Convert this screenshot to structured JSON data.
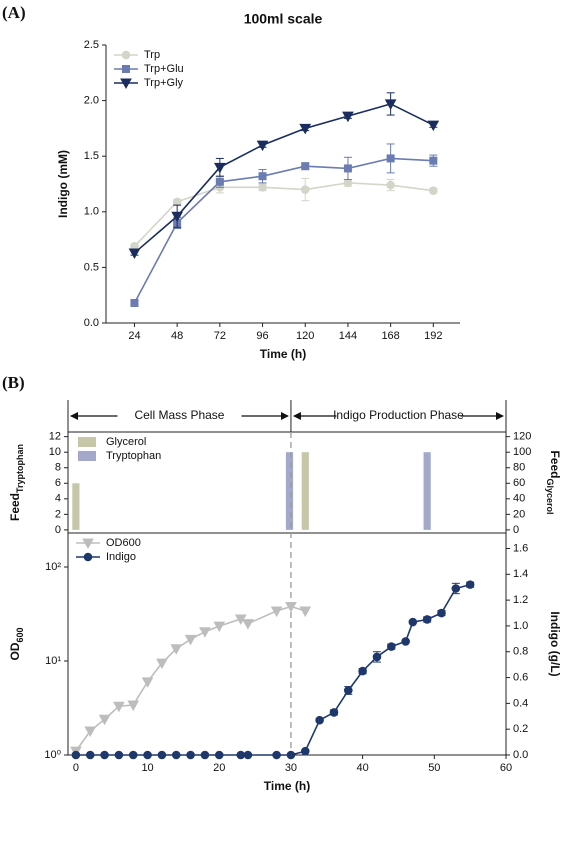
{
  "chart_data": [
    {
      "type": "line",
      "panel": "(A)",
      "title": "100ml scale",
      "xlabel": "Time (h)",
      "ylabel": "Indigo (mM)",
      "x": [
        24,
        48,
        72,
        96,
        120,
        144,
        168,
        192
      ],
      "xlim": [
        8,
        207
      ],
      "xticks": [
        24,
        48,
        72,
        96,
        120,
        144,
        168,
        192
      ],
      "ylim": [
        0,
        2.5
      ],
      "yticks": [
        {
          "value": 0,
          "label": "0.0"
        },
        0.5,
        {
          "value": 1,
          "label": "1.0"
        },
        1.5,
        {
          "value": 2,
          "label": "2.0"
        },
        2.5
      ],
      "legend": "upper left",
      "series": [
        {
          "name": "Trp",
          "color": "#d3d5c8",
          "marker": "circle",
          "values": [
            0.69,
            1.09,
            1.22,
            1.22,
            1.2,
            1.26,
            1.24,
            1.19
          ],
          "errors": [
            0.02,
            0.02,
            0.05,
            0.03,
            0.1,
            0.03,
            0.05,
            0.02
          ]
        },
        {
          "name": "Trp+Glu",
          "color": "#6a7cb1",
          "marker": "square",
          "values": [
            0.18,
            0.9,
            1.27,
            1.32,
            1.41,
            1.39,
            1.48,
            1.46
          ],
          "errors": [
            0.02,
            0.05,
            0.05,
            0.06,
            0.03,
            0.1,
            0.13,
            0.05
          ]
        },
        {
          "name": "Trp+Gly",
          "color": "#1b2d5e",
          "marker": "triangle-down",
          "values": [
            0.63,
            0.96,
            1.4,
            1.6,
            1.75,
            1.86,
            1.97,
            1.78
          ],
          "errors": [
            0.02,
            0.1,
            0.08,
            0.02,
            0.02,
            0.02,
            0.1,
            0.02
          ]
        }
      ]
    },
    {
      "type": "bar",
      "panel": "(B)",
      "phases": [
        "Cell Mass Phase",
        "Indigo Production Phase"
      ],
      "phase_boundary": 30,
      "ylabel": "Feed",
      "ylabel_sub": "Tryptophan",
      "y2label": "Feed",
      "y2label_sub": "Glycerol",
      "xlim": [
        -1.1,
        60
      ],
      "ylim": [
        -0.4,
        12.6
      ],
      "yticks": [
        0,
        2,
        4,
        6,
        8,
        10,
        12
      ],
      "y2lim": [
        -4,
        126
      ],
      "y2ticks": [
        0,
        20,
        40,
        60,
        80,
        100,
        120
      ],
      "legend": "upper left",
      "series": [
        {
          "name": "Glycerol",
          "color": "#c6c7a8",
          "axis": "y2",
          "x": [
            0,
            32
          ],
          "values": [
            60,
            100
          ]
        },
        {
          "name": "Tryptophan",
          "color": "#a2a9cb",
          "x": [
            29.8,
            49
          ],
          "values": [
            10,
            10
          ]
        }
      ]
    },
    {
      "type": "line",
      "xlabel": "Time (h)",
      "ylabel": "OD",
      "ylabel_sub": "600",
      "y2label": "Indigo (g/L)",
      "xlim": [
        -1.1,
        60
      ],
      "xticks": [
        0,
        10,
        20,
        30,
        40,
        50,
        60
      ],
      "ylog": true,
      "ylim": [
        1,
        230
      ],
      "yticks": [
        {
          "value": 1,
          "label": "10⁰"
        },
        {
          "value": 10,
          "label": "10¹"
        },
        {
          "value": 100,
          "label": "10²"
        }
      ],
      "y2lim": [
        0,
        1.72
      ],
      "y2ticks": [
        {
          "value": 0,
          "label": "0.0"
        },
        0.2,
        0.4,
        0.6,
        0.8,
        {
          "value": 1,
          "label": "1.0"
        },
        1.2,
        1.4,
        1.6
      ],
      "vline": 30,
      "legend": "upper left",
      "series": [
        {
          "name": "OD600",
          "color": "#bdbdbd",
          "marker": "triangle-down",
          "x": [
            0,
            2,
            4,
            6,
            8,
            10,
            12,
            14,
            16,
            18,
            20,
            23,
            24,
            28,
            30,
            32
          ],
          "values": [
            1.1,
            1.8,
            2.4,
            3.3,
            3.4,
            6,
            9.5,
            13.5,
            17,
            20.5,
            23.5,
            28,
            25,
            34,
            38,
            34
          ]
        },
        {
          "name": "Indigo",
          "color": "#1f386c",
          "marker": "circle",
          "axis": "y2",
          "x": [
            0,
            2,
            4,
            6,
            8,
            10,
            12,
            14,
            16,
            18,
            20,
            23,
            24,
            28,
            30,
            32,
            34,
            36,
            38,
            40,
            42,
            44,
            46,
            47,
            49,
            51,
            53,
            55
          ],
          "values": [
            0,
            0,
            0,
            0,
            0,
            0,
            0,
            0,
            0,
            0,
            0,
            0,
            0,
            0,
            0,
            0.03,
            0.27,
            0.33,
            0.5,
            0.65,
            0.76,
            0.84,
            0.88,
            1.03,
            1.05,
            1.1,
            1.29,
            1.32
          ],
          "errors": [
            null,
            null,
            null,
            null,
            null,
            null,
            null,
            null,
            null,
            null,
            null,
            null,
            null,
            null,
            null,
            null,
            null,
            0.02,
            0.03,
            0.02,
            0.04,
            0.02,
            null,
            null,
            0.02,
            0.02,
            0.04,
            0.02
          ]
        }
      ]
    }
  ]
}
